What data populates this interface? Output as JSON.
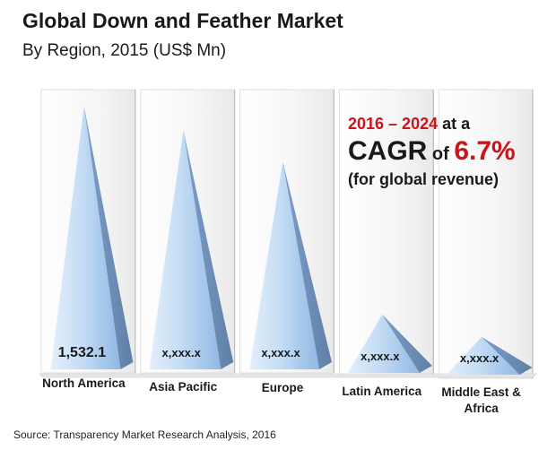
{
  "title": "Global Down and Feather Market",
  "subtitle": "By Region, 2015 (US$ Mn)",
  "source": "Source: Transparency Market Research Analysis, 2016",
  "callout": {
    "years": "2016 – 2024",
    "at_a": " at a",
    "cagr": "CAGR",
    "of": " of ",
    "rate": "6.7%",
    "note": "(for global revenue)"
  },
  "colors": {
    "accent_red": "#c8151b",
    "pyramid_light": "#cfe3f7",
    "pyramid_mid": "#8fb8e4",
    "pyramid_dark": "#6f8fb8",
    "wall": "#f2f2f2"
  },
  "chart_data": {
    "type": "bar",
    "style": "3d-pyramid",
    "title": "Global Down and Feather Market",
    "subtitle": "By Region, 2015 (US$ Mn)",
    "categories": [
      "North America",
      "Asia Pacific",
      "Europe",
      "Latin America",
      "Middle East & Africa"
    ],
    "values": [
      1532.1,
      1390,
      1210,
      340,
      220
    ],
    "value_labels": [
      "1,532.1",
      "x,xxx.x",
      "x,xxx.x",
      "x,xxx.x",
      "x,xxx.x"
    ],
    "ylim": [
      0,
      1532.1
    ],
    "grid": false,
    "legend": "none"
  }
}
